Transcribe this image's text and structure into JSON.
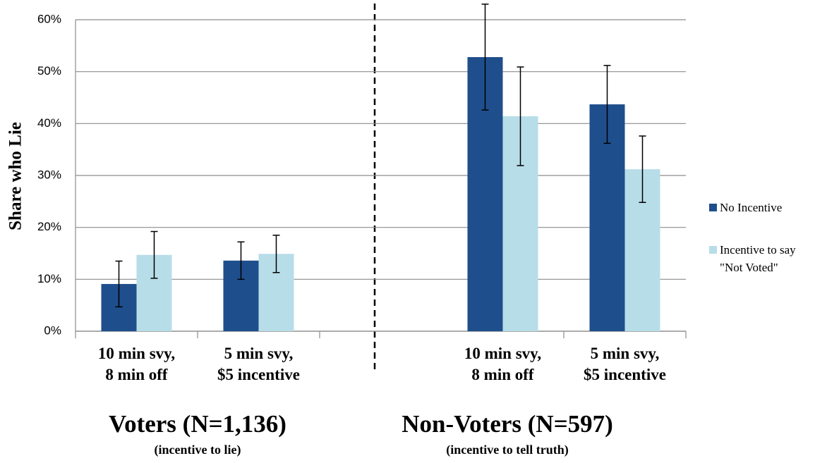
{
  "chart_data": {
    "type": "bar",
    "y_label": "Share who Lie",
    "categories": [
      "10 min svy,\n8 min off",
      "5 min svy,\n$5 incentive",
      null,
      "10 min svy,\n8 min off",
      "5 min svy,\n$5 incentive"
    ],
    "series": [
      {
        "name": "No Incentive",
        "color": "#1f4e8c",
        "values": [
          9.1,
          13.6,
          null,
          52.8,
          43.7
        ],
        "errors": [
          4.4,
          3.6,
          null,
          10.2,
          7.5
        ]
      },
      {
        "name": "Incentive to say\n\"Not Voted\"",
        "color": "#b7dde8",
        "values": [
          14.7,
          14.9,
          null,
          41.4,
          31.2
        ],
        "errors": [
          4.5,
          3.6,
          null,
          9.5,
          6.4
        ]
      }
    ],
    "ylim": [
      0,
      60
    ],
    "yticks": [
      {
        "value": 0,
        "label": "0%"
      },
      {
        "value": 10,
        "label": "10%"
      },
      {
        "value": 20,
        "label": "20%"
      },
      {
        "value": 30,
        "label": "30%"
      },
      {
        "value": 40,
        "label": "40%"
      },
      {
        "value": 50,
        "label": "50%"
      },
      {
        "value": 60,
        "label": "60%"
      }
    ],
    "grid": true,
    "legend_position": "right",
    "group_labels": [
      {
        "title": "Voters (N=1,136)",
        "subtitle": "(incentive to lie)"
      },
      {
        "title": "Non-Voters (N=597)",
        "subtitle": "(incentive to tell truth)"
      }
    ]
  }
}
